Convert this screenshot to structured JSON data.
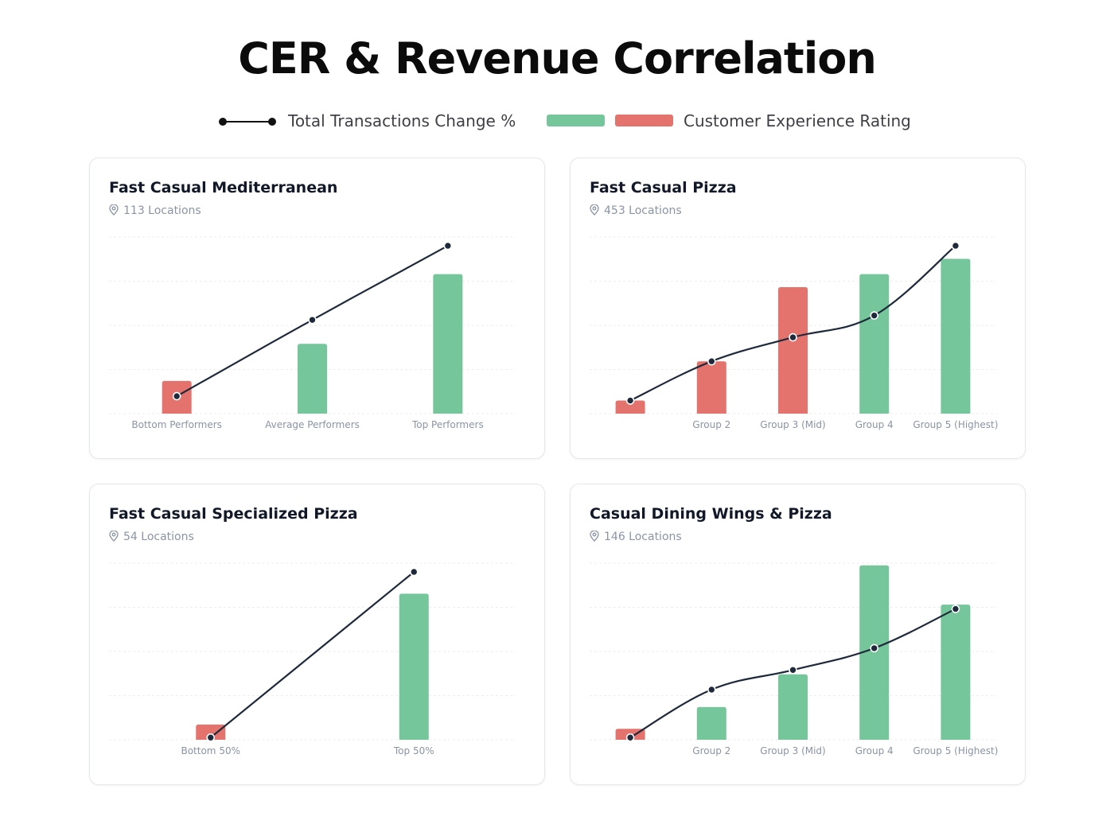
{
  "title": "CER & Revenue Correlation",
  "legend": {
    "line_label": "Total Transactions Change %",
    "bar_label": "Customer Experience Rating",
    "bar_colors": [
      "#76c69b",
      "#e4736d"
    ]
  },
  "colors": {
    "positive": "#76c69b",
    "negative": "#e4736d",
    "line": "#1e293b",
    "grid": "#eeeeee",
    "tick": "#8a94a6"
  },
  "icons": {
    "location": "map-pin-icon"
  },
  "chart_data": [
    {
      "type": "bar",
      "title": "Fast Casual Mediterranean",
      "subtitle": "113 Locations",
      "categories": [
        "Bottom Performers",
        "Average Performers",
        "Top Performers"
      ],
      "series": [
        {
          "values": [
            15,
            32,
            64
          ],
          "colors": [
            "#e4736d",
            "#76c69b",
            "#76c69b"
          ]
        },
        {
          "type": "line",
          "values": [
            8,
            43,
            77
          ]
        }
      ],
      "ylim": [
        0,
        81
      ],
      "grid": true
    },
    {
      "type": "bar",
      "title": "Fast Casual Pizza",
      "subtitle": "453 Locations",
      "categories": [
        "",
        "Group 2",
        "Group 3 (Mid)",
        "Group 4",
        "Group 5 (Highest)"
      ],
      "series": [
        {
          "values": [
            6,
            24,
            58,
            64,
            71
          ],
          "colors": [
            "#e4736d",
            "#e4736d",
            "#e4736d",
            "#76c69b",
            "#76c69b"
          ]
        },
        {
          "type": "line",
          "values": [
            6,
            24,
            35,
            45,
            77
          ]
        }
      ],
      "ylim": [
        0,
        81
      ],
      "grid": true
    },
    {
      "type": "bar",
      "title": "Fast Casual Specialized Pizza",
      "subtitle": "54 Locations",
      "categories": [
        "Bottom 50%",
        "Top 50%"
      ],
      "series": [
        {
          "values": [
            7,
            67
          ],
          "colors": [
            "#e4736d",
            "#76c69b"
          ]
        },
        {
          "type": "line",
          "values": [
            1,
            77
          ]
        }
      ],
      "ylim": [
        0,
        81
      ],
      "grid": true
    },
    {
      "type": "bar",
      "title": "Casual Dining Wings & Pizza",
      "subtitle": "146 Locations",
      "categories": [
        "",
        "Group 2",
        "Group 3 (Mid)",
        "Group 4",
        "Group 5 (Highest)"
      ],
      "series": [
        {
          "values": [
            5,
            15,
            30,
            80,
            62
          ],
          "colors": [
            "#e4736d",
            "#76c69b",
            "#76c69b",
            "#76c69b",
            "#76c69b"
          ]
        },
        {
          "type": "line",
          "values": [
            1,
            23,
            32,
            42,
            60
          ]
        }
      ],
      "ylim": [
        0,
        81
      ],
      "grid": true
    }
  ]
}
